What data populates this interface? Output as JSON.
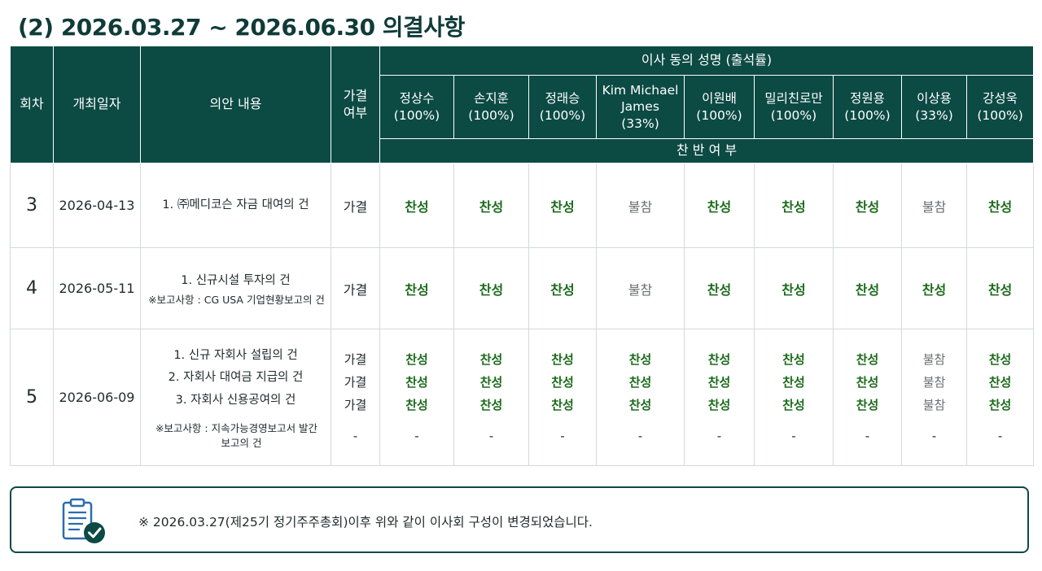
{
  "title": "(2) 2026.03.27 ~ 2026.06.30 의결사항",
  "header": {
    "round": "회차",
    "date": "개최일자",
    "agenda": "의안 내용",
    "passed_l1": "가결",
    "passed_l2": "여부",
    "directors_group": "이사 동의 성명 (출석률)",
    "consent": "찬 반 여 부",
    "directors": [
      {
        "name": "정상수",
        "rate": "(100%)"
      },
      {
        "name": "손지훈",
        "rate": "(100%)"
      },
      {
        "name": "정래승",
        "rate": "(100%)"
      },
      {
        "name": "Kim Michael James",
        "name_l1": "Kim Michael",
        "name_l2": "James",
        "rate": "(33%)"
      },
      {
        "name": "이원배",
        "rate": "(100%)"
      },
      {
        "name": "밀리친로만",
        "rate": "(100%)"
      },
      {
        "name": "정원용",
        "rate": "(100%)"
      },
      {
        "name": "이상용",
        "rate": "(33%)"
      },
      {
        "name": "강성욱",
        "rate": "(100%)"
      }
    ]
  },
  "rows": [
    {
      "round": "3",
      "date": "2026-04-13",
      "agenda": [
        "1. ㈜메디코슨 자금 대여의 건"
      ],
      "passed": "가결",
      "votes": [
        "찬성",
        "찬성",
        "찬성",
        "불참",
        "찬성",
        "찬성",
        "찬성",
        "불참",
        "찬성"
      ]
    },
    {
      "round": "4",
      "date": "2026-05-11",
      "agenda": [
        "1. 신규시설 투자의 건"
      ],
      "note": "※보고사항 : CG USA 기업현황보고의 건",
      "passed": "가결",
      "votes": [
        "찬성",
        "찬성",
        "찬성",
        "불참",
        "찬성",
        "찬성",
        "찬성",
        "찬성",
        "찬성"
      ]
    },
    {
      "round": "5",
      "date": "2026-06-09",
      "agenda": [
        "1. 신규 자회사 설립의 건",
        "2. 자회사 대여금 지급의 건",
        "3. 자회사 신용공여의 건"
      ],
      "note_l1": "※보고사항 : 지속가능경영보고서 발간",
      "note_l2": "보고의 건",
      "passed": [
        "가결",
        "가결",
        "가결",
        "-"
      ],
      "votes": [
        [
          "찬성",
          "찬성",
          "찬성",
          "-"
        ],
        [
          "찬성",
          "찬성",
          "찬성",
          "-"
        ],
        [
          "찬성",
          "찬성",
          "찬성",
          "-"
        ],
        [
          "찬성",
          "찬성",
          "찬성",
          "-"
        ],
        [
          "찬성",
          "찬성",
          "찬성",
          "-"
        ],
        [
          "찬성",
          "찬성",
          "찬성",
          "-"
        ],
        [
          "찬성",
          "찬성",
          "찬성",
          "-"
        ],
        [
          "불참",
          "불참",
          "불참",
          "-"
        ],
        [
          "찬성",
          "찬성",
          "찬성",
          "-"
        ]
      ]
    }
  ],
  "notice": {
    "icon": "clipboard-check-icon",
    "text": "※ 2026.03.27(제25기 정기주주총회)이후 위와 같이 이사회 구성이 변경되었습니다."
  },
  "colors": {
    "header_bg": "#0c4a44",
    "agree": "#1d6b1d",
    "absent": "#6a6f6f"
  }
}
